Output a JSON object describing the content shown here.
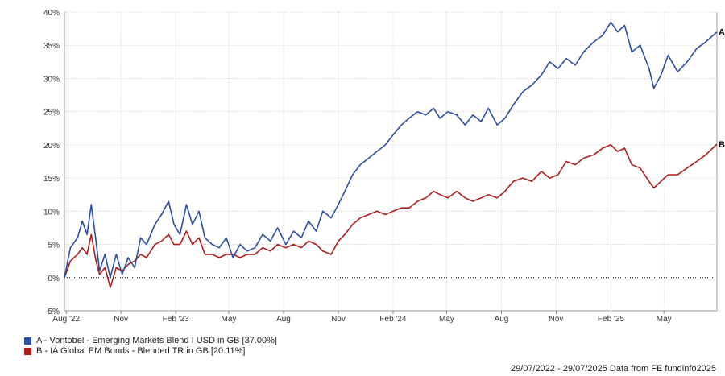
{
  "chart_data": {
    "type": "line",
    "ylim": [
      -5,
      40
    ],
    "y_ticks": [
      "-5%",
      "0%",
      "5%",
      "10%",
      "15%",
      "20%",
      "25%",
      "30%",
      "35%",
      "40%"
    ],
    "y_tick_values": [
      -5,
      0,
      5,
      10,
      15,
      20,
      25,
      30,
      35,
      40
    ],
    "x_range": [
      "2022-07-29",
      "2025-07-29"
    ],
    "x_ticks": [
      {
        "label": "Aug '22",
        "date": "2022-08-01"
      },
      {
        "label": "Nov",
        "date": "2022-11-01"
      },
      {
        "label": "Feb '23",
        "date": "2023-02-01"
      },
      {
        "label": "May",
        "date": "2023-05-01"
      },
      {
        "label": "Aug",
        "date": "2023-08-01"
      },
      {
        "label": "Nov",
        "date": "2023-11-01"
      },
      {
        "label": "Feb '24",
        "date": "2024-02-01"
      },
      {
        "label": "May",
        "date": "2024-05-01"
      },
      {
        "label": "Aug",
        "date": "2024-08-01"
      },
      {
        "label": "Nov",
        "date": "2024-11-01"
      },
      {
        "label": "Feb '25",
        "date": "2025-02-01"
      },
      {
        "label": "May",
        "date": "2025-05-01"
      }
    ],
    "grid": true,
    "zero_line": "dotted",
    "series": [
      {
        "name": "A - Vontobel - Emerging Markets Blend I USD in GB [37.00%]",
        "end_label": "A",
        "color": "#2a4fa3",
        "points": [
          [
            "2022-07-29",
            0
          ],
          [
            "2022-08-08",
            4.5
          ],
          [
            "2022-08-20",
            6.0
          ],
          [
            "2022-08-28",
            8.5
          ],
          [
            "2022-09-05",
            6.5
          ],
          [
            "2022-09-12",
            11.0
          ],
          [
            "2022-09-20",
            5.5
          ],
          [
            "2022-09-26",
            1.0
          ],
          [
            "2022-10-05",
            3.5
          ],
          [
            "2022-10-14",
            0.0
          ],
          [
            "2022-10-24",
            3.5
          ],
          [
            "2022-11-03",
            0.5
          ],
          [
            "2022-11-13",
            3.0
          ],
          [
            "2022-11-24",
            1.5
          ],
          [
            "2022-12-04",
            6.0
          ],
          [
            "2022-12-14",
            5.0
          ],
          [
            "2022-12-28",
            8.0
          ],
          [
            "2023-01-08",
            9.5
          ],
          [
            "2023-01-20",
            11.5
          ],
          [
            "2023-01-29",
            8.0
          ],
          [
            "2023-02-08",
            6.5
          ],
          [
            "2023-02-19",
            11.0
          ],
          [
            "2023-03-01",
            8.0
          ],
          [
            "2023-03-12",
            10.0
          ],
          [
            "2023-03-22",
            6.0
          ],
          [
            "2023-04-03",
            5.0
          ],
          [
            "2023-04-15",
            4.5
          ],
          [
            "2023-04-27",
            6.0
          ],
          [
            "2023-05-08",
            3.0
          ],
          [
            "2023-05-20",
            5.0
          ],
          [
            "2023-06-01",
            4.0
          ],
          [
            "2023-06-14",
            4.5
          ],
          [
            "2023-06-27",
            6.5
          ],
          [
            "2023-07-10",
            5.5
          ],
          [
            "2023-07-22",
            7.5
          ],
          [
            "2023-08-05",
            5.0
          ],
          [
            "2023-08-18",
            7.0
          ],
          [
            "2023-08-31",
            6.0
          ],
          [
            "2023-09-12",
            8.5
          ],
          [
            "2023-09-25",
            7.0
          ],
          [
            "2023-10-06",
            10.0
          ],
          [
            "2023-10-20",
            9.0
          ],
          [
            "2023-11-01",
            11.0
          ],
          [
            "2023-11-12",
            13.0
          ],
          [
            "2023-11-25",
            15.5
          ],
          [
            "2023-12-08",
            17.0
          ],
          [
            "2023-12-22",
            18.0
          ],
          [
            "2024-01-05",
            19.0
          ],
          [
            "2024-01-19",
            20.0
          ],
          [
            "2024-02-01",
            21.5
          ],
          [
            "2024-02-15",
            23.0
          ],
          [
            "2024-02-28",
            24.0
          ],
          [
            "2024-03-13",
            25.0
          ],
          [
            "2024-03-27",
            24.5
          ],
          [
            "2024-04-09",
            25.5
          ],
          [
            "2024-04-20",
            24.0
          ],
          [
            "2024-05-03",
            25.0
          ],
          [
            "2024-05-18",
            24.5
          ],
          [
            "2024-06-01",
            23.0
          ],
          [
            "2024-06-14",
            24.5
          ],
          [
            "2024-06-28",
            23.5
          ],
          [
            "2024-07-10",
            25.5
          ],
          [
            "2024-07-25",
            23.0
          ],
          [
            "2024-08-07",
            24.0
          ],
          [
            "2024-08-21",
            26.0
          ],
          [
            "2024-09-06",
            28.0
          ],
          [
            "2024-09-21",
            29.0
          ],
          [
            "2024-10-07",
            30.5
          ],
          [
            "2024-10-21",
            32.5
          ],
          [
            "2024-11-04",
            31.5
          ],
          [
            "2024-11-18",
            33.0
          ],
          [
            "2024-12-03",
            32.0
          ],
          [
            "2024-12-17",
            34.0
          ],
          [
            "2025-01-03",
            35.5
          ],
          [
            "2025-01-18",
            36.5
          ],
          [
            "2025-02-01",
            38.5
          ],
          [
            "2025-02-12",
            37.0
          ],
          [
            "2025-02-24",
            38.0
          ],
          [
            "2025-03-08",
            34.0
          ],
          [
            "2025-03-22",
            35.0
          ],
          [
            "2025-04-06",
            31.5
          ],
          [
            "2025-04-14",
            28.5
          ],
          [
            "2025-04-26",
            30.5
          ],
          [
            "2025-05-08",
            33.5
          ],
          [
            "2025-05-24",
            31.0
          ],
          [
            "2025-06-09",
            32.5
          ],
          [
            "2025-06-25",
            34.5
          ],
          [
            "2025-07-10",
            35.5
          ],
          [
            "2025-07-29",
            37.0
          ]
        ]
      },
      {
        "name": "B - IA Global EM Bonds - Blended TR in GB [20.11%]",
        "end_label": "B",
        "color": "#b01d1d",
        "points": [
          [
            "2022-07-29",
            0
          ],
          [
            "2022-08-08",
            2.5
          ],
          [
            "2022-08-20",
            3.5
          ],
          [
            "2022-08-28",
            4.5
          ],
          [
            "2022-09-05",
            3.5
          ],
          [
            "2022-09-12",
            6.5
          ],
          [
            "2022-09-20",
            2.5
          ],
          [
            "2022-09-26",
            0.5
          ],
          [
            "2022-10-05",
            1.5
          ],
          [
            "2022-10-14",
            -1.5
          ],
          [
            "2022-10-24",
            1.5
          ],
          [
            "2022-11-03",
            1.0
          ],
          [
            "2022-11-13",
            2.0
          ],
          [
            "2022-11-24",
            2.5
          ],
          [
            "2022-12-04",
            3.5
          ],
          [
            "2022-12-14",
            3.0
          ],
          [
            "2022-12-28",
            5.0
          ],
          [
            "2023-01-08",
            5.5
          ],
          [
            "2023-01-20",
            6.5
          ],
          [
            "2023-01-29",
            5.0
          ],
          [
            "2023-02-08",
            5.0
          ],
          [
            "2023-02-19",
            7.0
          ],
          [
            "2023-03-01",
            5.0
          ],
          [
            "2023-03-12",
            6.0
          ],
          [
            "2023-03-22",
            3.5
          ],
          [
            "2023-04-03",
            3.5
          ],
          [
            "2023-04-15",
            3.0
          ],
          [
            "2023-04-27",
            3.5
          ],
          [
            "2023-05-08",
            3.5
          ],
          [
            "2023-05-20",
            3.0
          ],
          [
            "2023-06-01",
            3.5
          ],
          [
            "2023-06-14",
            3.5
          ],
          [
            "2023-06-27",
            4.5
          ],
          [
            "2023-07-10",
            4.0
          ],
          [
            "2023-07-22",
            5.0
          ],
          [
            "2023-08-05",
            4.5
          ],
          [
            "2023-08-18",
            5.0
          ],
          [
            "2023-08-31",
            4.5
          ],
          [
            "2023-09-12",
            5.5
          ],
          [
            "2023-09-25",
            5.0
          ],
          [
            "2023-10-06",
            4.0
          ],
          [
            "2023-10-20",
            3.5
          ],
          [
            "2023-11-01",
            5.5
          ],
          [
            "2023-11-12",
            6.5
          ],
          [
            "2023-11-25",
            8.0
          ],
          [
            "2023-12-08",
            9.0
          ],
          [
            "2023-12-22",
            9.5
          ],
          [
            "2024-01-05",
            10.0
          ],
          [
            "2024-01-19",
            9.5
          ],
          [
            "2024-02-01",
            10.0
          ],
          [
            "2024-02-15",
            10.5
          ],
          [
            "2024-02-28",
            10.5
          ],
          [
            "2024-03-13",
            11.5
          ],
          [
            "2024-03-27",
            12.0
          ],
          [
            "2024-04-09",
            13.0
          ],
          [
            "2024-04-20",
            12.5
          ],
          [
            "2024-05-03",
            12.0
          ],
          [
            "2024-05-18",
            13.0
          ],
          [
            "2024-06-01",
            12.0
          ],
          [
            "2024-06-14",
            11.5
          ],
          [
            "2024-06-28",
            12.0
          ],
          [
            "2024-07-10",
            12.5
          ],
          [
            "2024-07-25",
            12.0
          ],
          [
            "2024-08-07",
            13.0
          ],
          [
            "2024-08-21",
            14.5
          ],
          [
            "2024-09-06",
            15.0
          ],
          [
            "2024-09-21",
            14.5
          ],
          [
            "2024-10-07",
            16.0
          ],
          [
            "2024-10-21",
            15.0
          ],
          [
            "2024-11-04",
            15.5
          ],
          [
            "2024-11-18",
            17.5
          ],
          [
            "2024-12-03",
            17.0
          ],
          [
            "2024-12-17",
            18.0
          ],
          [
            "2025-01-03",
            18.5
          ],
          [
            "2025-01-18",
            19.5
          ],
          [
            "2025-02-01",
            20.0
          ],
          [
            "2025-02-12",
            19.0
          ],
          [
            "2025-02-24",
            19.5
          ],
          [
            "2025-03-08",
            17.0
          ],
          [
            "2025-03-22",
            16.5
          ],
          [
            "2025-04-06",
            14.5
          ],
          [
            "2025-04-14",
            13.5
          ],
          [
            "2025-04-26",
            14.5
          ],
          [
            "2025-05-08",
            15.5
          ],
          [
            "2025-05-24",
            15.5
          ],
          [
            "2025-06-09",
            16.5
          ],
          [
            "2025-06-25",
            17.5
          ],
          [
            "2025-07-10",
            18.5
          ],
          [
            "2025-07-29",
            20.11
          ]
        ]
      }
    ]
  },
  "legend": {
    "items": [
      {
        "label": "A - Vontobel - Emerging Markets Blend I USD in GB [37.00%]",
        "color": "#2a4fa3"
      },
      {
        "label": "B - IA Global EM Bonds - Blended TR in GB [20.11%]",
        "color": "#b01d1d"
      }
    ]
  },
  "footer": {
    "text": "29/07/2022 - 29/07/2025 Data from FE fundinfo2025"
  }
}
